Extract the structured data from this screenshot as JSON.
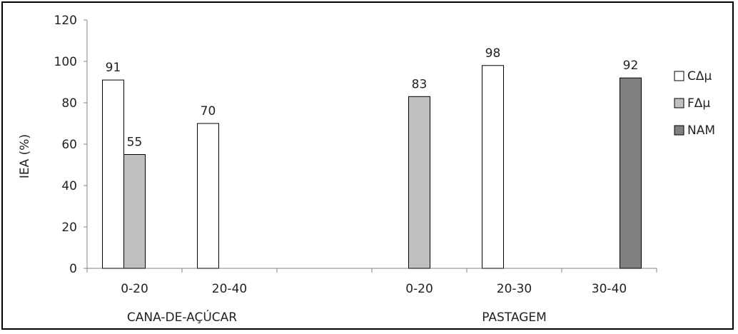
{
  "chart_data": {
    "type": "bar",
    "ylabel": "IEA (%)",
    "ylim": [
      0,
      120
    ],
    "yticks": [
      "0",
      "20",
      "40",
      "60",
      "80",
      "100",
      "120"
    ],
    "grid": false,
    "legend_position": "right",
    "groups": [
      {
        "label": "CANA-DE-AÇÚCAR",
        "categories": [
          "0-20",
          "20-40"
        ]
      },
      {
        "label": "PASTAGEM",
        "categories": [
          "0-20",
          "20-30",
          "30-40"
        ]
      }
    ],
    "categories": [
      "0-20",
      "20-40",
      "",
      "0-20",
      "20-30",
      "30-40"
    ],
    "series": [
      {
        "name": "CΔμ",
        "color": "#ffffff",
        "values": [
          91,
          70,
          null,
          null,
          98,
          null
        ]
      },
      {
        "name": "FΔμ",
        "color": "#c0c0c0",
        "values": [
          55,
          null,
          null,
          83,
          null,
          null
        ]
      },
      {
        "name": "NAM",
        "color": "#808080",
        "values": [
          null,
          null,
          null,
          null,
          null,
          92
        ]
      }
    ]
  }
}
